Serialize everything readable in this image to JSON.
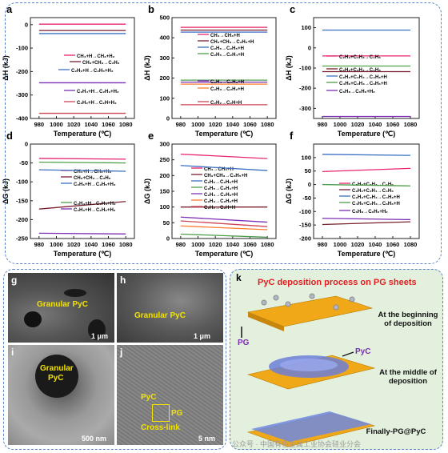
{
  "chart_data": [
    {
      "panel": "a",
      "type": "line",
      "xlabel": "Temperature (℃)",
      "ylabel": "ΔH (kJ)",
      "xlim": [
        970,
        1090
      ],
      "ylim": [
        -400,
        30
      ],
      "xticks": [
        980,
        1000,
        1020,
        1040,
        1060,
        1080
      ],
      "yticks": [
        0,
        -100,
        -200,
        -300,
        -400
      ],
      "series": [
        {
          "name": "CH₄+H→CH₃+H₂",
          "color": "#e8246f",
          "values": [
            2,
            2
          ]
        },
        {
          "name": "CH₃+CH₃→C₂H₆",
          "color": "#7a1f2e",
          "values": [
            -25,
            -25
          ]
        },
        {
          "name": "C₂H₆+H→C₂H₅+H₂",
          "color": "#3a6fc4",
          "values": [
            -38,
            -38
          ]
        },
        {
          "name": "C₂H₄+H→C₂H₃+H₂",
          "color": "#7b2fb5",
          "values": [
            -248,
            -248
          ]
        },
        {
          "name": "C₂H₂+H→C₂H+H₂",
          "color": "#cf4455",
          "values": [
            -378,
            -378
          ]
        }
      ],
      "x": [
        980,
        1080
      ]
    },
    {
      "panel": "b",
      "type": "line",
      "xlabel": "Temperature (℃)",
      "ylabel": "ΔH (kJ)",
      "xlim": [
        970,
        1090
      ],
      "ylim": [
        0,
        500
      ],
      "xticks": [
        980,
        1000,
        1020,
        1040,
        1060,
        1080
      ],
      "yticks": [
        0,
        100,
        200,
        300,
        400,
        500
      ],
      "series": [
        {
          "name": "CH₄→CH₃+H",
          "color": "#e8246f",
          "values": [
            452,
            452
          ]
        },
        {
          "name": "CH₃+CH₃→C₂H₅+H",
          "color": "#7a1f2e",
          "values": [
            438,
            438
          ]
        },
        {
          "name": "C₂H₆→C₂H₅+H",
          "color": "#3a6fc4",
          "values": [
            428,
            428
          ]
        },
        {
          "name": "C₂H₅→C₂H₄+H",
          "color": "#4f9e4a",
          "values": [
            190,
            190
          ]
        },
        {
          "name": "C₂H₄→C₂H₃+H",
          "color": "#7b2fb5",
          "values": [
            180,
            180
          ]
        },
        {
          "name": "C₂H₃→C₂H₂+H",
          "color": "#ff7b2e",
          "values": [
            170,
            170
          ]
        },
        {
          "name": "C₂H₂→C₂H+H",
          "color": "#cf4455",
          "values": [
            68,
            68
          ]
        }
      ],
      "x": [
        980,
        1080
      ]
    },
    {
      "panel": "c",
      "type": "line",
      "xlabel": "Temperature (℃)",
      "ylabel": "ΔH (kJ)",
      "xlim": [
        970,
        1090
      ],
      "ylim": [
        -350,
        150
      ],
      "xticks": [
        980,
        1000,
        1020,
        1040,
        1060,
        1080
      ],
      "yticks": [
        100,
        0,
        -100,
        -200,
        -300
      ],
      "series": [
        {
          "name": "C₂H₃+C₂H₃→C₄H₆",
          "color": "#e8246f",
          "values": [
            -40,
            -40
          ]
        },
        {
          "name": "C₂H₂+C₂H₄→C₄H₆",
          "color": "#7a1f2e",
          "values": [
            -118,
            -118
          ]
        },
        {
          "name": "C₂H₃+C₂H₄→C₄H₆+H",
          "color": "#3a6fc4",
          "values": [
            88,
            88
          ]
        },
        {
          "name": "C₄H₆+C₂H₃→C₆H₆+H",
          "color": "#4f9e4a",
          "values": [
            -90,
            -90
          ]
        },
        {
          "name": "C₆H₈→C₆H₆+H₂",
          "color": "#7b2fb5",
          "values": [
            -340,
            -340
          ]
        }
      ],
      "x": [
        980,
        1080
      ]
    },
    {
      "panel": "d",
      "type": "line",
      "xlabel": "Temperature (℃)",
      "ylabel": "ΔG (kJ)",
      "xlim": [
        970,
        1090
      ],
      "ylim": [
        -250,
        0
      ],
      "xticks": [
        980,
        1000,
        1020,
        1040,
        1060,
        1080
      ],
      "yticks": [
        0,
        -50,
        -100,
        -150,
        -200,
        -250
      ],
      "series": [
        {
          "name": "CH₄+H→CH₃+H₂",
          "color": "#e8246f",
          "values": [
            -38,
            -40
          ]
        },
        {
          "name": "CH₃+CH₃→C₂H₆",
          "color": "#7a1f2e",
          "values": [
            -172,
            -152
          ]
        },
        {
          "name": "C₂H₆+H→C₂H₅+H₂",
          "color": "#3a6fc4",
          "values": [
            -68,
            -72
          ]
        },
        {
          "name": "C₂H₄+H→C₂H₃+H₂",
          "color": "#4f9e4a",
          "values": [
            -48,
            -50
          ]
        },
        {
          "name": "C₂H₃+H→C₂H₂+H₂",
          "color": "#7b2fb5",
          "values": [
            -236,
            -238
          ]
        }
      ],
      "x": [
        980,
        1080
      ]
    },
    {
      "panel": "e",
      "type": "line",
      "xlabel": "Temperature (℃)",
      "ylabel": "ΔG (kJ)",
      "xlim": [
        970,
        1090
      ],
      "ylim": [
        0,
        300
      ],
      "xticks": [
        980,
        1000,
        1020,
        1040,
        1060,
        1080
      ],
      "yticks": [
        0,
        50,
        100,
        150,
        200,
        250,
        300
      ],
      "series": [
        {
          "name": "CH₄→CH₃+H",
          "color": "#e8246f",
          "values": [
            268,
            254
          ]
        },
        {
          "name": "CH₃+CH₃→C₂H₅+H",
          "color": "#7a1f2e",
          "values": [
            100,
            100
          ]
        },
        {
          "name": "C₂H₆→C₂H₅+H",
          "color": "#3a6fc4",
          "values": [
            232,
            216
          ]
        },
        {
          "name": "C₂H₅→C₂H₄+H",
          "color": "#4f9e4a",
          "values": [
            14,
            4
          ]
        },
        {
          "name": "C₂H₄→C₂H₃+H",
          "color": "#7b2fb5",
          "values": [
            68,
            52
          ]
        },
        {
          "name": "C₂H₃→C₂H₂+H",
          "color": "#ff7b2e",
          "values": [
            40,
            28
          ]
        },
        {
          "name": "C₂H₂→C₂H+H",
          "color": "#cf4455",
          "values": [
            56,
            38
          ]
        }
      ],
      "x": [
        980,
        1080
      ]
    },
    {
      "panel": "f",
      "type": "line",
      "xlabel": "Temperature (℃)",
      "ylabel": "ΔG (kJ)",
      "xlim": [
        970,
        1090
      ],
      "ylim": [
        -200,
        150
      ],
      "xticks": [
        980,
        1000,
        1020,
        1040,
        1060,
        1080
      ],
      "yticks": [
        100,
        50,
        0,
        -50,
        -100,
        -150,
        -200
      ],
      "series": [
        {
          "name": "C₂H₃+C₂H₃→C₄H₆",
          "color": "#e8246f",
          "values": [
            48,
            60
          ]
        },
        {
          "name": "C₂H₂+C₂H₄→C₄H₆",
          "color": "#7a1f2e",
          "values": [
            -148,
            -138
          ]
        },
        {
          "name": "C₂H₃+C₂H₄→C₄H₆+H",
          "color": "#3a6fc4",
          "values": [
            112,
            108
          ]
        },
        {
          "name": "C₄H₆+C₂H₃→C₆H₆+H",
          "color": "#4f9e4a",
          "values": [
            0,
            -5
          ]
        },
        {
          "name": "C₆H₈→C₆H₆+H₂",
          "color": "#7b2fb5",
          "values": [
            -125,
            -130
          ]
        }
      ],
      "x": [
        980,
        1080
      ]
    }
  ],
  "images": {
    "g": {
      "letter": "g",
      "label": "Granular PyC",
      "scale": "1 μm"
    },
    "h": {
      "letter": "h",
      "label": "Granular PyC",
      "scale": "1 μm"
    },
    "i": {
      "letter": "i",
      "label1": "Granular",
      "label2": "PyC",
      "scale": "500 nm"
    },
    "j": {
      "letter": "j",
      "label_pyc": "PyC",
      "label_pg": "PG",
      "label_cross": "Cross-link",
      "scale": "5 nm"
    }
  },
  "panel_k": {
    "letter": "k",
    "title": "PyC deposition process on PG sheets",
    "label_pg": "PG",
    "label_pyc": "PyC",
    "stage1": "At the beginning of deposition",
    "stage2": "At the middle of deposition",
    "stage3": "Finally-PG@PyC",
    "watermark": "公众号 · 中国有色金属工业协会硅业分会"
  },
  "colors": {
    "frame": "#5b86c8",
    "title_red": "#e02020",
    "label_yellow": "#f2e200",
    "purple": "#7a2fb0"
  }
}
